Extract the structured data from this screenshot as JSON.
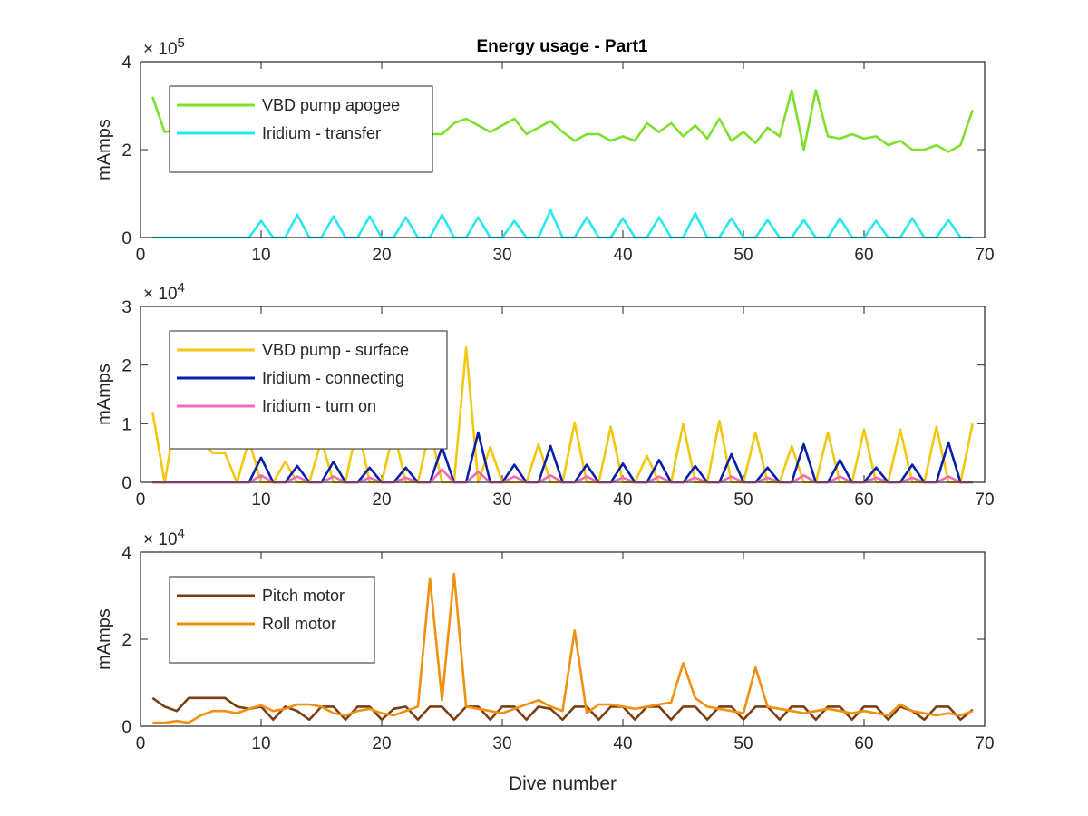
{
  "figure_title": "Energy usage - Part1",
  "chart_data": [
    {
      "type": "line",
      "ylabel": "mAmps",
      "xlabel": "",
      "xlim": [
        0,
        70
      ],
      "ylim": [
        0,
        4
      ],
      "xticks": [
        0,
        10,
        20,
        30,
        40,
        50,
        60,
        70
      ],
      "yticks": [
        0,
        2,
        4
      ],
      "yexp_base": "× 10",
      "yexp_power": "5",
      "legend_position": "top-left",
      "series": [
        {
          "name": "VBD pump apogee",
          "color": "#7de02b",
          "x": [
            1,
            2,
            3,
            4,
            5,
            6,
            7,
            8,
            9,
            10,
            11,
            12,
            13,
            14,
            15,
            16,
            17,
            18,
            19,
            20,
            21,
            22,
            23,
            24,
            25,
            26,
            27,
            28,
            29,
            30,
            31,
            32,
            33,
            34,
            35,
            36,
            37,
            38,
            39,
            40,
            41,
            42,
            43,
            44,
            45,
            46,
            47,
            48,
            49,
            50,
            51,
            52,
            53,
            54,
            55,
            56,
            57,
            58,
            59,
            60,
            61,
            62,
            63,
            64,
            65,
            66,
            67,
            68,
            69
          ],
          "values": [
            3.2,
            2.4,
            2.45,
            2.5,
            2.45,
            2.5,
            2.4,
            2.45,
            2.5,
            2.45,
            2.4,
            2.5,
            2.45,
            2.4,
            2.5,
            2.45,
            2.4,
            2.5,
            2.45,
            2.4,
            2.5,
            2.45,
            2.4,
            2.35,
            2.35,
            2.6,
            2.7,
            2.55,
            2.4,
            2.55,
            2.7,
            2.35,
            2.5,
            2.65,
            2.4,
            2.2,
            2.35,
            2.35,
            2.2,
            2.3,
            2.2,
            2.6,
            2.4,
            2.6,
            2.3,
            2.55,
            2.25,
            2.7,
            2.2,
            2.4,
            2.15,
            2.5,
            2.3,
            3.35,
            2.0,
            3.35,
            2.3,
            2.25,
            2.35,
            2.25,
            2.3,
            2.1,
            2.2,
            2.0,
            2.0,
            2.1,
            1.95,
            2.1,
            2.9
          ]
        },
        {
          "name": "Iridium - transfer",
          "color": "#26e8ee",
          "x": [
            1,
            2,
            3,
            4,
            5,
            6,
            7,
            8,
            9,
            10,
            11,
            12,
            13,
            14,
            15,
            16,
            17,
            18,
            19,
            20,
            21,
            22,
            23,
            24,
            25,
            26,
            27,
            28,
            29,
            30,
            31,
            32,
            33,
            34,
            35,
            36,
            37,
            38,
            39,
            40,
            41,
            42,
            43,
            44,
            45,
            46,
            47,
            48,
            49,
            50,
            51,
            52,
            53,
            54,
            55,
            56,
            57,
            58,
            59,
            60,
            61,
            62,
            63,
            64,
            65,
            66,
            67,
            68,
            69
          ],
          "values": [
            0,
            0,
            0,
            0,
            0,
            0,
            0,
            0,
            0,
            0.38,
            0,
            0,
            0.52,
            0,
            0,
            0.48,
            0,
            0,
            0.48,
            0,
            0,
            0.46,
            0,
            0,
            0.52,
            0,
            0,
            0.46,
            0,
            0,
            0.38,
            0,
            0,
            0.62,
            0,
            0,
            0.46,
            0,
            0,
            0.44,
            0,
            0,
            0.46,
            0,
            0,
            0.55,
            0,
            0,
            0.44,
            0,
            0,
            0.4,
            0,
            0,
            0.4,
            0,
            0,
            0.44,
            0,
            0,
            0.38,
            0,
            0,
            0.44,
            0,
            0,
            0.4,
            0,
            0
          ]
        }
      ]
    },
    {
      "type": "line",
      "ylabel": "mAmps",
      "xlabel": "",
      "xlim": [
        0,
        70
      ],
      "ylim": [
        0,
        3
      ],
      "xticks": [
        0,
        10,
        20,
        30,
        40,
        50,
        60,
        70
      ],
      "yticks": [
        0,
        1,
        2,
        3
      ],
      "yexp_base": "× 10",
      "yexp_power": "4",
      "legend_position": "top-left",
      "series": [
        {
          "name": "VBD pump - surface",
          "color": "#f2c80f",
          "x": [
            1,
            2,
            3,
            4,
            5,
            6,
            7,
            8,
            9,
            10,
            11,
            12,
            13,
            14,
            15,
            16,
            17,
            18,
            19,
            20,
            21,
            22,
            23,
            24,
            25,
            26,
            27,
            28,
            29,
            30,
            31,
            32,
            33,
            34,
            35,
            36,
            37,
            38,
            39,
            40,
            41,
            42,
            43,
            44,
            45,
            46,
            47,
            48,
            49,
            50,
            51,
            52,
            53,
            54,
            55,
            56,
            57,
            58,
            59,
            60,
            61,
            62,
            63,
            64,
            65,
            66,
            67,
            68,
            69
          ],
          "values": [
            1.2,
            0,
            1.2,
            1.25,
            0.7,
            0.5,
            0.5,
            0,
            0.72,
            0,
            0,
            0.35,
            0,
            0,
            0.72,
            0,
            0,
            1.0,
            0,
            0,
            0.88,
            0,
            0,
            0.92,
            0,
            0,
            2.3,
            0,
            0.6,
            0,
            0,
            0,
            0.65,
            0,
            0,
            1.02,
            0,
            0,
            0.95,
            0,
            0,
            0.45,
            0,
            0,
            1.0,
            0,
            0,
            1.05,
            0,
            0,
            0.85,
            0,
            0,
            0.62,
            0,
            0,
            0.85,
            0,
            0,
            0.9,
            0,
            0,
            0.9,
            0,
            0,
            0.95,
            0,
            0,
            1.0
          ]
        },
        {
          "name": "Iridium - connecting",
          "color": "#0a1fa8",
          "x": [
            1,
            2,
            3,
            4,
            5,
            6,
            7,
            8,
            9,
            10,
            11,
            12,
            13,
            14,
            15,
            16,
            17,
            18,
            19,
            20,
            21,
            22,
            23,
            24,
            25,
            26,
            27,
            28,
            29,
            30,
            31,
            32,
            33,
            34,
            35,
            36,
            37,
            38,
            39,
            40,
            41,
            42,
            43,
            44,
            45,
            46,
            47,
            48,
            49,
            50,
            51,
            52,
            53,
            54,
            55,
            56,
            57,
            58,
            59,
            60,
            61,
            62,
            63,
            64,
            65,
            66,
            67,
            68,
            69
          ],
          "values": [
            0,
            0,
            0,
            0,
            0,
            0,
            0,
            0,
            0,
            0.42,
            0,
            0,
            0.28,
            0,
            0,
            0.35,
            0,
            0,
            0.25,
            0,
            0,
            0.25,
            0,
            0,
            0.6,
            0,
            0,
            0.85,
            0,
            0,
            0.3,
            0,
            0,
            0.62,
            0,
            0,
            0.3,
            0,
            0,
            0.32,
            0,
            0,
            0.38,
            0,
            0,
            0.28,
            0,
            0,
            0.48,
            0,
            0,
            0.25,
            0,
            0,
            0.65,
            0,
            0,
            0.38,
            0,
            0,
            0.25,
            0,
            0,
            0.3,
            0,
            0,
            0.68,
            0,
            0
          ]
        },
        {
          "name": "Iridium - turn on",
          "color": "#f06bb7",
          "x": [
            1,
            2,
            3,
            4,
            5,
            6,
            7,
            8,
            9,
            10,
            11,
            12,
            13,
            14,
            15,
            16,
            17,
            18,
            19,
            20,
            21,
            22,
            23,
            24,
            25,
            26,
            27,
            28,
            29,
            30,
            31,
            32,
            33,
            34,
            35,
            36,
            37,
            38,
            39,
            40,
            41,
            42,
            43,
            44,
            45,
            46,
            47,
            48,
            49,
            50,
            51,
            52,
            53,
            54,
            55,
            56,
            57,
            58,
            59,
            60,
            61,
            62,
            63,
            64,
            65,
            66,
            67,
            68,
            69
          ],
          "values": [
            0,
            0,
            0,
            0,
            0,
            0,
            0,
            0,
            0,
            0.12,
            0,
            0,
            0.1,
            0,
            0,
            0.1,
            0,
            0,
            0.08,
            0,
            0,
            0.08,
            0,
            0,
            0.22,
            0,
            0,
            0.18,
            0,
            0,
            0.1,
            0,
            0,
            0.12,
            0,
            0,
            0.1,
            0,
            0,
            0.08,
            0,
            0,
            0.1,
            0,
            0,
            0.08,
            0,
            0,
            0.1,
            0,
            0,
            0.08,
            0,
            0,
            0.12,
            0,
            0,
            0.1,
            0,
            0,
            0.08,
            0,
            0,
            0.08,
            0,
            0,
            0.1,
            0,
            0
          ]
        }
      ]
    },
    {
      "type": "line",
      "ylabel": "mAmps",
      "xlabel": "Dive number",
      "xlim": [
        0,
        70
      ],
      "ylim": [
        0,
        4
      ],
      "xticks": [
        0,
        10,
        20,
        30,
        40,
        50,
        60,
        70
      ],
      "yticks": [
        0,
        2,
        4
      ],
      "yexp_base": "× 10",
      "yexp_power": "4",
      "legend_position": "top-left",
      "series": [
        {
          "name": "Pitch motor",
          "color": "#7a3e12",
          "x": [
            1,
            2,
            3,
            4,
            5,
            6,
            7,
            8,
            9,
            10,
            11,
            12,
            13,
            14,
            15,
            16,
            17,
            18,
            19,
            20,
            21,
            22,
            23,
            24,
            25,
            26,
            27,
            28,
            29,
            30,
            31,
            32,
            33,
            34,
            35,
            36,
            37,
            38,
            39,
            40,
            41,
            42,
            43,
            44,
            45,
            46,
            47,
            48,
            49,
            50,
            51,
            52,
            53,
            54,
            55,
            56,
            57,
            58,
            59,
            60,
            61,
            62,
            63,
            64,
            65,
            66,
            67,
            68,
            69
          ],
          "values": [
            0.65,
            0.45,
            0.35,
            0.65,
            0.65,
            0.65,
            0.65,
            0.45,
            0.4,
            0.45,
            0.15,
            0.45,
            0.35,
            0.15,
            0.45,
            0.45,
            0.15,
            0.45,
            0.45,
            0.15,
            0.4,
            0.45,
            0.15,
            0.45,
            0.45,
            0.15,
            0.45,
            0.45,
            0.15,
            0.45,
            0.45,
            0.15,
            0.45,
            0.4,
            0.15,
            0.45,
            0.45,
            0.15,
            0.45,
            0.45,
            0.15,
            0.45,
            0.45,
            0.15,
            0.45,
            0.45,
            0.15,
            0.45,
            0.45,
            0.15,
            0.45,
            0.45,
            0.15,
            0.45,
            0.45,
            0.15,
            0.45,
            0.45,
            0.15,
            0.45,
            0.45,
            0.15,
            0.45,
            0.35,
            0.15,
            0.45,
            0.45,
            0.15,
            0.38
          ]
        },
        {
          "name": "Roll motor",
          "color": "#f0900e",
          "x": [
            1,
            2,
            3,
            4,
            5,
            6,
            7,
            8,
            9,
            10,
            11,
            12,
            13,
            14,
            15,
            16,
            17,
            18,
            19,
            20,
            21,
            22,
            23,
            24,
            25,
            26,
            27,
            28,
            29,
            30,
            31,
            32,
            33,
            34,
            35,
            36,
            37,
            38,
            39,
            40,
            41,
            42,
            43,
            44,
            45,
            46,
            47,
            48,
            49,
            50,
            51,
            52,
            53,
            54,
            55,
            56,
            57,
            58,
            59,
            60,
            61,
            62,
            63,
            64,
            65,
            66,
            67,
            68,
            69
          ],
          "values": [
            0.08,
            0.08,
            0.12,
            0.08,
            0.25,
            0.35,
            0.35,
            0.3,
            0.4,
            0.48,
            0.35,
            0.4,
            0.5,
            0.5,
            0.45,
            0.3,
            0.25,
            0.35,
            0.4,
            0.3,
            0.25,
            0.35,
            0.45,
            3.4,
            0.6,
            3.5,
            0.45,
            0.4,
            0.35,
            0.3,
            0.4,
            0.5,
            0.6,
            0.45,
            0.35,
            2.2,
            0.3,
            0.5,
            0.5,
            0.45,
            0.4,
            0.45,
            0.5,
            0.55,
            1.45,
            0.65,
            0.45,
            0.4,
            0.35,
            0.3,
            1.35,
            0.45,
            0.4,
            0.35,
            0.3,
            0.35,
            0.4,
            0.35,
            0.3,
            0.35,
            0.3,
            0.25,
            0.5,
            0.35,
            0.3,
            0.25,
            0.3,
            0.25,
            0.35
          ]
        }
      ]
    }
  ]
}
